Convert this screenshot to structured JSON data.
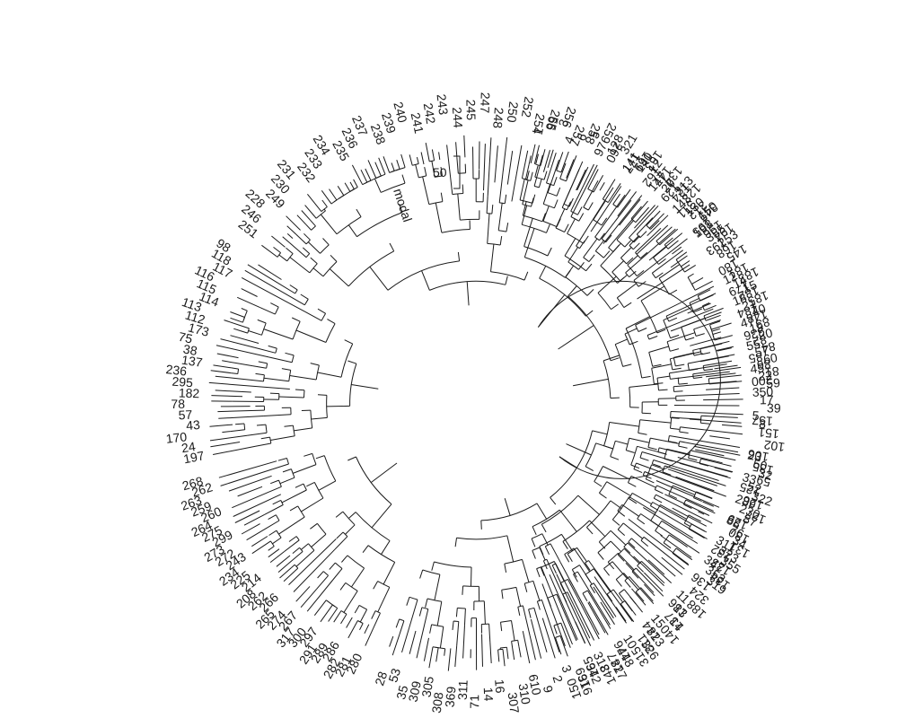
{
  "scale_bar": {
    "label": "50"
  },
  "special_label": "modal",
  "clades": [
    {
      "from": 12,
      "to": 58,
      "labels": [
        "1",
        "99",
        "3",
        "4",
        "6",
        "5",
        "97",
        "128",
        "321",
        "141",
        "140",
        "12",
        "147",
        "20",
        "313",
        "143",
        "130",
        "150",
        "198",
        "355",
        "253"
      ]
    },
    {
      "from": 63,
      "to": 95,
      "labels": [
        "12",
        "14",
        "15",
        "18",
        "21",
        "40",
        "47",
        "19",
        "20",
        "55",
        "57",
        "60",
        "45",
        "22",
        "59",
        "350",
        "17",
        "39",
        "5",
        "8"
      ]
    },
    {
      "from": 100,
      "to": 128,
      "labels": [
        "23",
        "50",
        "32",
        "33",
        "52",
        "322",
        "289",
        "230",
        "87",
        "88",
        "76",
        "34",
        "311",
        "323",
        "355",
        "347",
        "353",
        "319"
      ]
    },
    {
      "from": 132,
      "to": 200,
      "labels": [
        "11",
        "13",
        "14",
        "15",
        "323",
        "326",
        "10",
        "448",
        "327",
        "318",
        "342",
        "316",
        "3",
        "2",
        "9",
        "610",
        "310",
        "307",
        "16",
        "14",
        "71",
        "311",
        "369",
        "308",
        "305",
        "309",
        "35",
        "53",
        "28"
      ]
    },
    {
      "from": 204,
      "to": 255,
      "labels": [
        "280",
        "281",
        "282",
        "286",
        "289",
        "291",
        "297",
        "300",
        "317",
        "267",
        "274",
        "265",
        "266",
        "262",
        "208",
        "214",
        "225",
        "234",
        "243",
        "272",
        "273",
        "299",
        "275",
        "264",
        "260",
        "259",
        "263",
        "262",
        "268"
      ]
    },
    {
      "from": 258,
      "to": 303,
      "labels": [
        "197",
        "24",
        "170",
        "43",
        "57",
        "78",
        "182",
        "295",
        "236",
        "137",
        "38",
        "75",
        "173",
        "112",
        "113",
        "114",
        "115",
        "116",
        "117",
        "118",
        "98"
      ]
    },
    {
      "from": 306,
      "to": 390,
      "labels": [
        "251",
        "246",
        "228",
        "249",
        "230",
        "231",
        "232",
        "233",
        "234",
        "235",
        "236",
        "237",
        "238",
        "239",
        "240",
        "241",
        "242",
        "243",
        "244",
        "245",
        "247",
        "248",
        "250",
        "252",
        "254",
        "255",
        "256",
        "257",
        "258",
        "259",
        "260"
      ]
    },
    {
      "from": 392,
      "to": 446,
      "labels": [
        "177",
        "169",
        "163",
        "162",
        "147",
        "134",
        "129",
        "124",
        "123",
        "311",
        "312",
        "349",
        "195",
        "196",
        "194",
        "193",
        "168",
        "145",
        "180",
        "181",
        "183",
        "179",
        "182",
        "185",
        "184",
        "148",
        "83",
        "336",
        "82",
        "84",
        "85",
        "86",
        "81",
        "200"
      ]
    },
    {
      "from": 452,
      "to": 522,
      "labels": [
        "157",
        "151",
        "102",
        "106",
        "135",
        "59",
        "125",
        "126",
        "127",
        "129",
        "130",
        "131",
        "132",
        "133",
        "134",
        "136",
        "324",
        "188",
        "186",
        "137",
        "140",
        "144",
        "311",
        "315",
        "176",
        "147",
        "143",
        "165",
        "169",
        "150"
      ]
    }
  ]
}
